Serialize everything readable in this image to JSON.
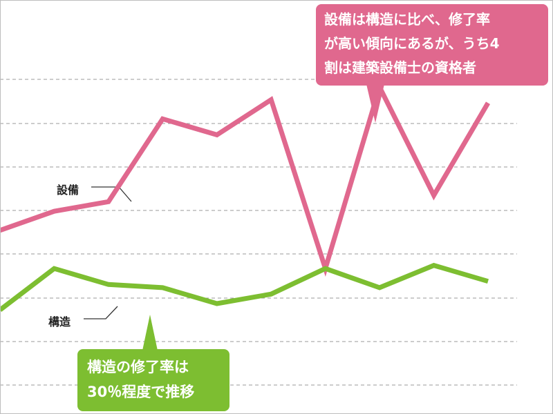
{
  "chart_data": {
    "type": "line",
    "x": [
      1,
      2,
      3,
      4,
      5,
      6,
      7,
      8,
      9,
      10
    ],
    "series": [
      {
        "name": "設備",
        "color": "#e0688e",
        "values": [
          49,
          55,
          58,
          84,
          79,
          90,
          37,
          94,
          60,
          89
        ]
      },
      {
        "name": "構造",
        "color": "#7dbe31",
        "values": [
          24,
          37,
          32,
          31,
          26,
          29,
          37,
          31,
          38,
          33
        ]
      }
    ],
    "ylim": [
      0,
      104
    ],
    "grid": true,
    "title": "",
    "xlabel": "",
    "ylabel": ""
  },
  "labels": {
    "equipment": "設備",
    "structure": "構造"
  },
  "callouts": {
    "equipment": "設備は構造に比べ、修了率\nが高い傾向にあるが、うち4\n割は建築設備士の資格者",
    "structure": "構造の修了率は\n30％程度で推移"
  }
}
